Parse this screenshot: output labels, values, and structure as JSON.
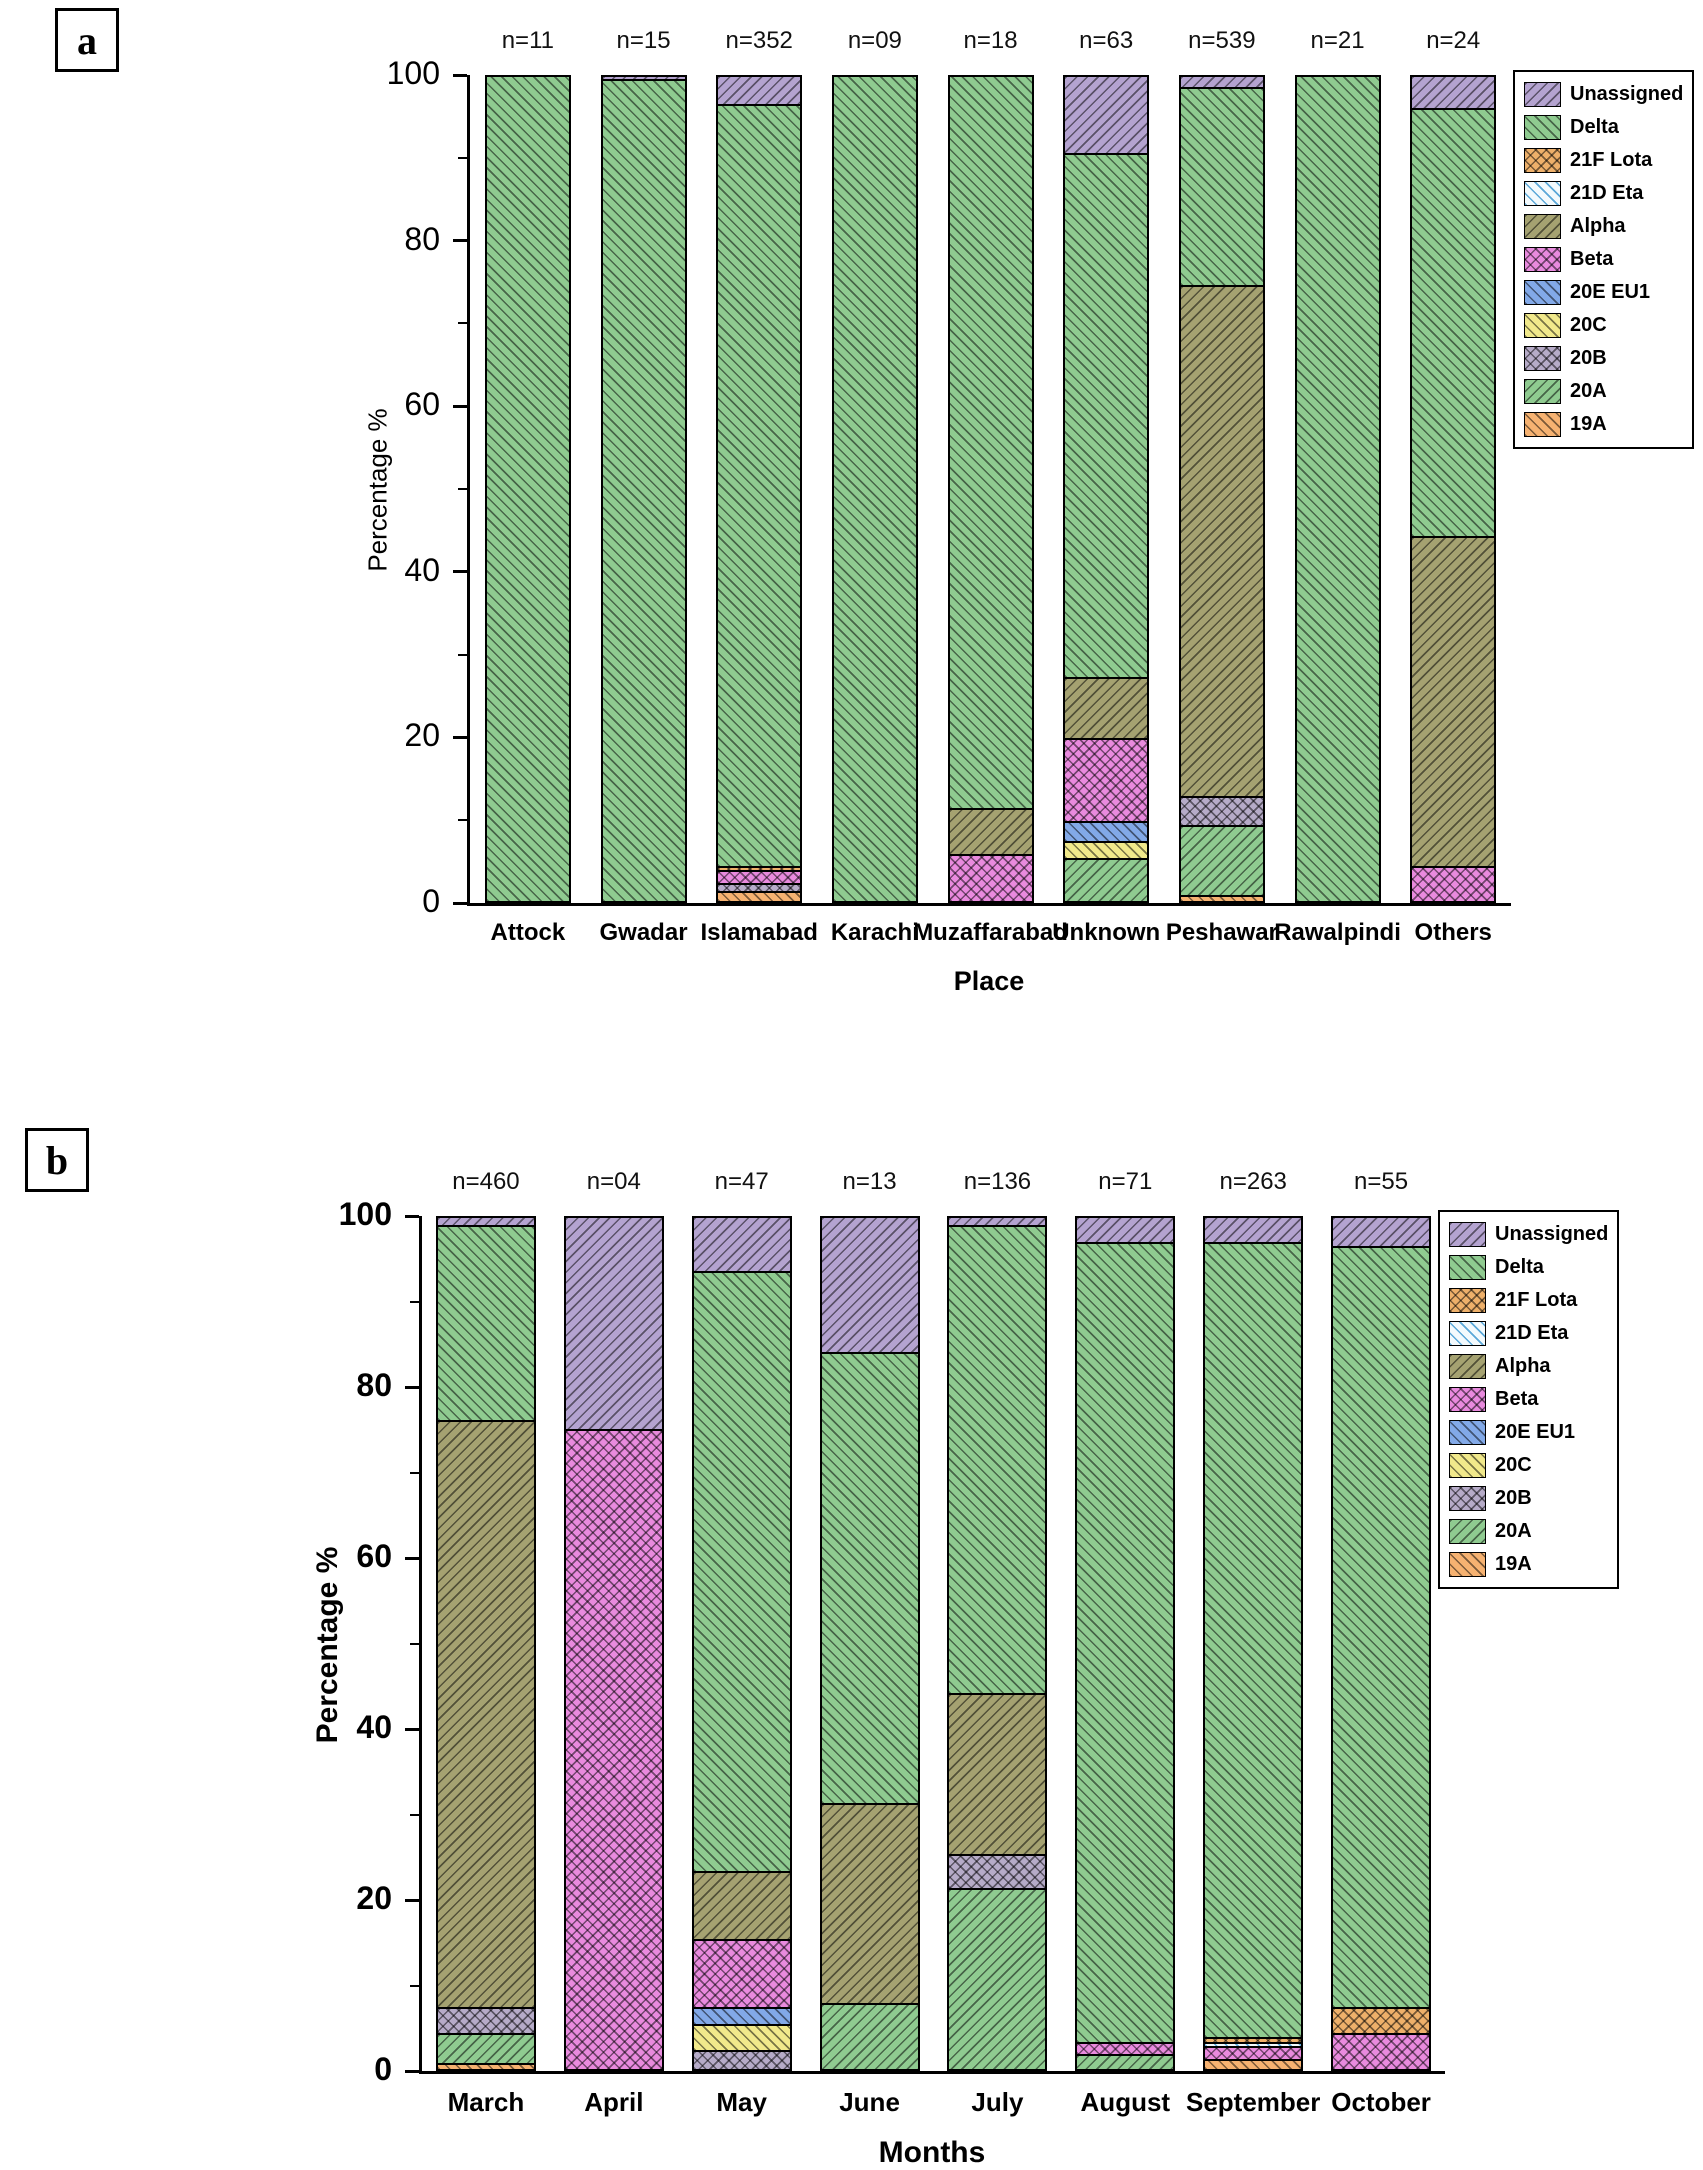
{
  "chart_data": [
    {
      "type": "bar",
      "stacked": true,
      "panel_label": "a",
      "xlabel": "Place",
      "ylabel": "Percentage %",
      "ylim": [
        0,
        100
      ],
      "yticks": [
        0,
        20,
        40,
        60,
        80,
        100
      ],
      "categories": [
        "Attock",
        "Gwadar",
        "Islamabad",
        "Karachi",
        "Muzaffarabad",
        "Unknown",
        "Peshawar",
        "Rawalpindi",
        "Others"
      ],
      "n_labels": [
        "n=11",
        "n=15",
        "n=352",
        "n=09",
        "n=18",
        "n=63",
        "n=539",
        "n=21",
        "n=24"
      ],
      "series": [
        {
          "name": "19A",
          "values": [
            0,
            0,
            1,
            0,
            0,
            0,
            0.5,
            0,
            0
          ]
        },
        {
          "name": "20A",
          "values": [
            0,
            0,
            0,
            0,
            0,
            5,
            8.5,
            0,
            0
          ]
        },
        {
          "name": "20B",
          "values": [
            0,
            0,
            1,
            0,
            0,
            0,
            3.5,
            0,
            0
          ]
        },
        {
          "name": "20C",
          "values": [
            0,
            0,
            0,
            0,
            0,
            2,
            0,
            0,
            0
          ]
        },
        {
          "name": "20E EU1",
          "values": [
            0,
            0,
            0,
            0,
            0,
            2.5,
            0,
            0,
            0
          ]
        },
        {
          "name": "Beta",
          "values": [
            0,
            0,
            1.5,
            0,
            5.5,
            10,
            0,
            0,
            4
          ]
        },
        {
          "name": "Alpha",
          "values": [
            0,
            0,
            0,
            0,
            5.5,
            7.5,
            62,
            0,
            40
          ]
        },
        {
          "name": "21D Eta",
          "values": [
            0,
            0,
            0,
            0,
            0,
            0,
            0,
            0,
            0
          ]
        },
        {
          "name": "21F Lota",
          "values": [
            0,
            0,
            0.5,
            0,
            0,
            0,
            0,
            0,
            0
          ]
        },
        {
          "name": "Delta",
          "values": [
            100,
            99.5,
            92.5,
            100,
            89,
            63.5,
            24,
            100,
            52
          ]
        },
        {
          "name": "Unassigned",
          "values": [
            0,
            0.5,
            3.5,
            0,
            0,
            9.5,
            1.5,
            0,
            4
          ]
        }
      ]
    },
    {
      "type": "bar",
      "stacked": true,
      "panel_label": "b",
      "xlabel": "Months",
      "ylabel": "Percentage %",
      "ylim": [
        0,
        100
      ],
      "yticks": [
        0,
        20,
        40,
        60,
        80,
        100
      ],
      "categories": [
        "March",
        "April",
        "May",
        "June",
        "July",
        "August",
        "September",
        "October"
      ],
      "n_labels": [
        "n=460",
        "n=04",
        "n=47",
        "n=13",
        "n=136",
        "n=71",
        "n=263",
        "n=55"
      ],
      "series": [
        {
          "name": "19A",
          "values": [
            0.5,
            0,
            0,
            0,
            0,
            0,
            1,
            0
          ]
        },
        {
          "name": "20A",
          "values": [
            3.5,
            0,
            0,
            7.5,
            21,
            1.5,
            0,
            0
          ]
        },
        {
          "name": "20B",
          "values": [
            3,
            0,
            2,
            0,
            4,
            0,
            0,
            0
          ]
        },
        {
          "name": "20C",
          "values": [
            0,
            0,
            3,
            0,
            0,
            0,
            0,
            0
          ]
        },
        {
          "name": "20E EU1",
          "values": [
            0,
            0,
            2,
            0,
            0,
            0,
            0,
            0
          ]
        },
        {
          "name": "Beta",
          "values": [
            0,
            75,
            8,
            0,
            0,
            1.5,
            1.5,
            4
          ]
        },
        {
          "name": "Alpha",
          "values": [
            69,
            0,
            8,
            23.5,
            19,
            0,
            0,
            0
          ]
        },
        {
          "name": "21D Eta",
          "values": [
            0,
            0,
            0,
            0,
            0,
            0,
            0.5,
            0
          ]
        },
        {
          "name": "21F Lota",
          "values": [
            0,
            0,
            0,
            0,
            0,
            0,
            0.5,
            3
          ]
        },
        {
          "name": "Delta",
          "values": [
            23,
            0,
            70.5,
            53,
            55,
            94,
            93.5,
            89.5
          ]
        },
        {
          "name": "Unassigned",
          "values": [
            1,
            25,
            6.5,
            16,
            1,
            3,
            3,
            3.5
          ]
        }
      ]
    }
  ],
  "legend": {
    "entries": [
      {
        "label": "Unassigned",
        "color": "#b4a3d0",
        "hatch": "diag-left"
      },
      {
        "label": "Delta",
        "color": "#8fcb90",
        "hatch": "diag-right"
      },
      {
        "label": "21F Lota",
        "color": "#eeb06a",
        "hatch": "cross"
      },
      {
        "label": "21D Eta",
        "color": "#f3fafd",
        "hatch": "diag-right",
        "line": "rgba(75,159,212,0.9)"
      },
      {
        "label": "Alpha",
        "color": "#a5a271",
        "hatch": "diag-left"
      },
      {
        "label": "Beta",
        "color": "#e98ade",
        "hatch": "cross"
      },
      {
        "label": "20E EU1",
        "color": "#82a9e8",
        "hatch": "diag-right"
      },
      {
        "label": "20C",
        "color": "#f1e98b",
        "hatch": "diag-right"
      },
      {
        "label": "20B",
        "color": "#b6abc8",
        "hatch": "cross"
      },
      {
        "label": "20A",
        "color": "#8fcb90",
        "hatch": "diag-left"
      },
      {
        "label": "19A",
        "color": "#f6b271",
        "hatch": "diag-right"
      }
    ]
  }
}
